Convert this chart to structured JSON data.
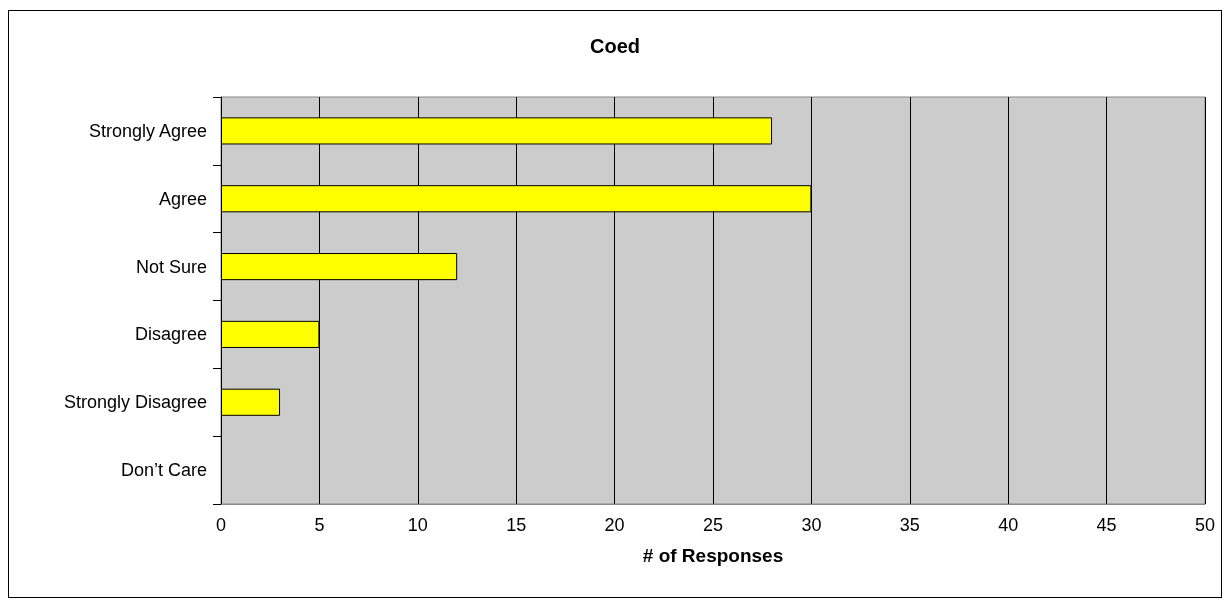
{
  "chart_data": {
    "type": "bar",
    "orientation": "horizontal",
    "title": "Coed",
    "xlabel": "# of Responses",
    "categories": [
      "Strongly Agree",
      "Agree",
      "Not Sure",
      "Disagree",
      "Strongly Disagree",
      "Don’t Care"
    ],
    "values": [
      28,
      30,
      12,
      5,
      3,
      0
    ],
    "color": "#ffff00",
    "xlim": [
      0,
      50
    ],
    "xticks": [
      0,
      5,
      10,
      15,
      20,
      25,
      30,
      35,
      40,
      45,
      50
    ],
    "grid": "x"
  }
}
